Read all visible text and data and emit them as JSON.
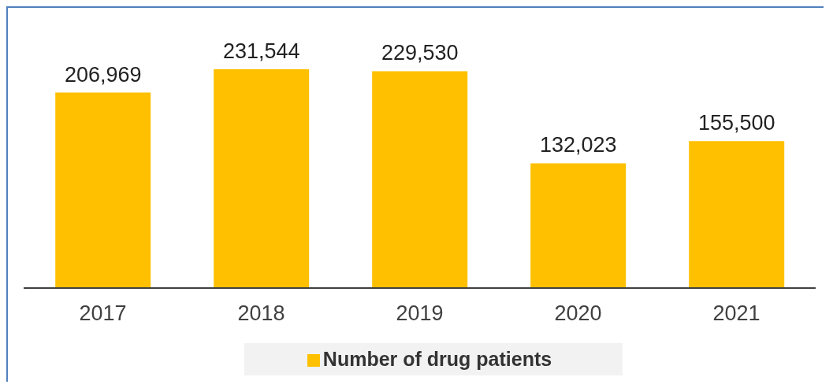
{
  "chart_data": {
    "type": "bar",
    "categories": [
      "2017",
      "2018",
      "2019",
      "2020",
      "2021"
    ],
    "series": [
      {
        "name": "Number of drug patients",
        "color": "#ffc000",
        "values": [
          206969,
          231544,
          229530,
          132023,
          155500
        ],
        "value_labels": [
          "206,969",
          "231,544",
          "229,530",
          "132,023",
          "155,500"
        ]
      }
    ],
    "legend": "bottom",
    "grid": false
  }
}
